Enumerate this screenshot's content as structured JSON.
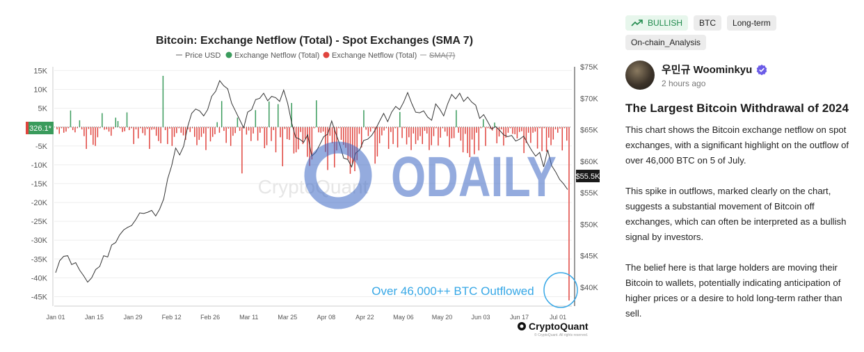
{
  "chart_data": {
    "type": "bar",
    "title": "Bitcoin: Exchange Netflow (Total) - Spot Exchanges (SMA 7)",
    "legend": [
      {
        "name": "Price USD",
        "color": "#666666",
        "style": "line"
      },
      {
        "name": "Exchange Netflow (Total)",
        "color": "#3a9b5c",
        "style": "dot"
      },
      {
        "name": "Exchange Netflow (Total)",
        "color": "#e0443e",
        "style": "dot"
      },
      {
        "name": "SMA(7)",
        "color": "#888888",
        "style": "line-strike"
      }
    ],
    "x_tick_labels": [
      "Jan 01",
      "Jan 15",
      "Jan 29",
      "Feb 12",
      "Feb 26",
      "Mar 11",
      "Mar 25",
      "Apr 08",
      "Apr 22",
      "May 06",
      "May 20",
      "Jun 03",
      "Jun 17",
      "Jul 01"
    ],
    "left_axis": {
      "ticks": [
        "15K",
        "10K",
        "5K",
        "-5K",
        "-10K",
        "-15K",
        "-20K",
        "-25K",
        "-30K",
        "-35K",
        "-40K",
        "-45K"
      ],
      "ylim": [
        -47500,
        16000
      ]
    },
    "right_axis": {
      "ticks": [
        "$75K",
        "$70K",
        "$65K",
        "$60K",
        "$55K",
        "$50K",
        "$45K",
        "$40K"
      ],
      "ylim": [
        37000,
        75000
      ]
    },
    "current_netflow_label": "326.1*",
    "current_price_label": "$55.5K",
    "annotation": "Over 46,000++ BTC Outflowed",
    "series": [
      {
        "name": "Exchange Netflow (Total)",
        "values": [
          -600,
          -1800,
          -300,
          -1500,
          -1200,
          -300,
          4400,
          -800,
          -1400,
          -300,
          1800,
          -600,
          -2400,
          -5800,
          -500,
          -2100,
          -4700,
          -5000,
          -2700,
          -300,
          3700,
          -700,
          -600,
          -1200,
          -2300,
          -500,
          2500,
          1600,
          -300,
          -1300,
          -1100,
          3900,
          -800,
          -300,
          -4500,
          -600,
          -3000,
          -300,
          -1600,
          -2200,
          -500,
          -5800,
          -700,
          -600,
          -2300,
          -3700,
          -4300,
          13600,
          -800,
          -4500,
          -400,
          -5000,
          -2600,
          -1600,
          -300,
          -1500,
          -2200,
          -3400,
          -600,
          -1300,
          -300,
          -2600,
          -4800,
          -3400,
          -2600,
          -1700,
          -6100,
          -300,
          -3800,
          -2600,
          -1900,
          1300,
          -1500,
          6900,
          -1000,
          -4200,
          -400,
          -5000,
          -2300,
          -1600,
          2500,
          -1000,
          -12300,
          -300,
          -2000,
          -900,
          -3700,
          -1700,
          4500,
          -3600,
          -1500,
          -300,
          -5600,
          -4800,
          6800,
          -3700,
          -800,
          -6700,
          6100,
          -2700,
          -10400,
          -500,
          -3200,
          -3400,
          6400,
          -7000,
          -6700,
          -5900,
          -1300,
          -4500,
          -3100,
          -7900,
          -10300,
          -8600,
          -300,
          7100,
          -1400,
          -1500,
          -1200,
          -6600,
          -11400,
          -2300,
          -4300,
          -10700,
          -6200,
          -300,
          -3400,
          -4700,
          -5500,
          -8500,
          -12400,
          -9800,
          -11700,
          -8800,
          -1800,
          -5400,
          4500,
          -700,
          -2400,
          -1200,
          -300,
          -9700,
          -7800,
          -4300,
          -2200,
          -900,
          -300,
          -5800,
          -1300,
          -4500,
          -300,
          -5400,
          4000,
          -2900,
          -300,
          -4600,
          -2700,
          -6100,
          -1700,
          -4500,
          -3500,
          -2400,
          -4500,
          -1000,
          -1700,
          -6100,
          -4800,
          -2400,
          -300,
          -4900,
          -2800,
          -300,
          -1200,
          -2400,
          -5300,
          -3000,
          -2900,
          4500,
          -1500,
          -3600,
          -6700,
          -1800,
          -6900,
          -8000,
          -3300,
          -7200,
          -1500,
          -6200,
          -300,
          2100,
          -5000,
          -300,
          -500,
          -900,
          1200,
          -4300,
          -2500,
          -600,
          -4900,
          -2800,
          -1500,
          -300,
          -1800,
          -1900,
          -3000,
          -1300,
          -1100,
          -6900,
          -4200,
          -1500,
          -4200,
          -1500,
          -1200,
          -5700,
          -300,
          -6400,
          -300,
          -6500,
          -2800,
          -4800,
          -3300,
          -600,
          -1500,
          -400,
          -6200,
          -300,
          -3600,
          -46000
        ]
      },
      {
        "name": "Price USD",
        "values": [
          42300,
          44200,
          44900,
          45000,
          43600,
          43900,
          42700,
          41800,
          40800,
          41500,
          42800,
          43300,
          45000,
          44800,
          46700,
          47100,
          48300,
          49100,
          49500,
          49800,
          50700,
          51800,
          51700,
          51900,
          52200,
          51300,
          52400,
          54000,
          57200,
          59300,
          62100,
          61000,
          62400,
          65500,
          67600,
          68300,
          68000,
          67200,
          68200,
          70300,
          71100,
          72800,
          72000,
          71500,
          69200,
          67900,
          66600,
          65300,
          67800,
          68200,
          69800,
          70000,
          70800,
          69600,
          70300,
          70100,
          69500,
          71300,
          69200,
          66100,
          63800,
          63500,
          63000,
          64200,
          60800,
          61400,
          62600,
          63900,
          64300,
          66400,
          64500,
          62700,
          60500,
          60300,
          59100,
          61300,
          61800,
          63300,
          63500,
          64100,
          65100,
          66400,
          67600,
          66300,
          67800,
          68700,
          68200,
          69400,
          70900,
          69200,
          67800,
          67700,
          68000,
          67000,
          66500,
          69100,
          68300,
          67200,
          69100,
          70600,
          69900,
          70800,
          69500,
          70200,
          69400,
          68900,
          66800,
          67400,
          66300,
          65100,
          65500,
          64900,
          64200,
          63900,
          64100,
          63200,
          63500,
          64000,
          62800,
          61700,
          60800,
          61400,
          59100,
          61800,
          59300,
          58300,
          57100,
          56400,
          55500
        ]
      }
    ]
  },
  "watermarks": {
    "chart": "CryptoQuant",
    "overlay": "ODAILY"
  },
  "brand": {
    "name": "CryptoQuant",
    "footnote": "© CryptoQuant. All rights reserved."
  },
  "colors": {
    "inflow": "#3a9b5c",
    "outflow": "#e0443e",
    "price": "#333333",
    "annotation": "#36a7e6",
    "bullish_text": "#1f8a4c",
    "bullish_bg": "#e7f6ec"
  },
  "tags": [
    "BULLISH",
    "BTC",
    "Long-term",
    "On-chain_Analysis"
  ],
  "author": {
    "name": "우민규 Woominkyu",
    "time": "2 hours ago",
    "verified_icon": "verified-badge-icon"
  },
  "post": {
    "title": "The Largest Bitcoin Withdrawal of 2024",
    "paragraphs": [
      "This chart shows the Bitcoin exchange netflow on spot exchanges, with a significant highlight on the outflow of over 46,000 BTC on 5 of July.",
      "This spike in outflows, marked clearly on the chart, suggests a substantial movement of Bitcoin off exchanges, which can often be interpreted as a bullish signal by investors.",
      "The belief here is that large holders are moving their Bitcoin to wallets, potentially indicating anticipation of higher prices or a desire to hold long-term rather than sell."
    ]
  }
}
